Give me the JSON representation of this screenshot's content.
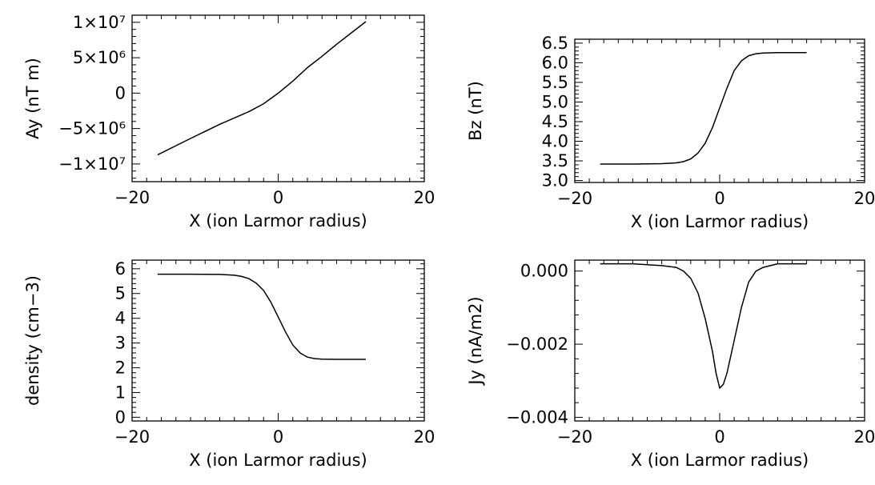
{
  "chart_data": [
    {
      "type": "line",
      "xlabel": "X (ion Larmor radius)",
      "ylabel": "Ay (nT m)",
      "xlim": [
        -20,
        20
      ],
      "ylim": [
        -12500000,
        11000000
      ],
      "xticks": [
        -20,
        0,
        20
      ],
      "xticklabels": [
        "−20",
        "0",
        "20"
      ],
      "yticks": [
        -10000000,
        -5000000,
        0,
        5000000,
        10000000
      ],
      "yticklabels": [
        "−1×10⁷",
        "−5×10⁶",
        "0",
        "5×10⁶",
        "1×10⁷"
      ],
      "series": [
        {
          "x": [
            -16.5,
            -12,
            -8,
            -4,
            -2,
            0,
            2,
            4,
            6,
            8,
            10,
            12
          ],
          "y": [
            -8700000,
            -6400000,
            -4400000,
            -2600000,
            -1500000,
            0,
            1700000,
            3600000,
            5200000,
            6900000,
            8500000,
            10100000
          ]
        }
      ]
    },
    {
      "type": "line",
      "xlabel": "X (ion Larmor radius)",
      "ylabel": "Bz (nT)",
      "xlim": [
        -20,
        20
      ],
      "ylim": [
        2.95,
        6.6
      ],
      "xticks": [
        -20,
        0,
        20
      ],
      "xticklabels": [
        "−20",
        "0",
        "20"
      ],
      "yticks": [
        3.0,
        3.5,
        4.0,
        4.5,
        5.0,
        5.5,
        6.0,
        6.5
      ],
      "yticklabels": [
        "3.0",
        "3.5",
        "4.0",
        "4.5",
        "5.0",
        "5.5",
        "6.0",
        "6.5"
      ],
      "series": [
        {
          "x": [
            -16.5,
            -12,
            -8,
            -6,
            -5,
            -4,
            -3,
            -2,
            -1,
            0,
            1,
            2,
            3,
            4,
            5,
            6,
            8,
            12
          ],
          "y": [
            3.42,
            3.42,
            3.43,
            3.45,
            3.48,
            3.55,
            3.7,
            3.95,
            4.35,
            4.85,
            5.35,
            5.8,
            6.05,
            6.18,
            6.23,
            6.25,
            6.26,
            6.26
          ]
        }
      ]
    },
    {
      "type": "line",
      "xlabel": "X (ion Larmor radius)",
      "ylabel": "density (cm−3)",
      "xlim": [
        -20,
        20
      ],
      "ylim": [
        -0.15,
        6.35
      ],
      "xticks": [
        -20,
        0,
        20
      ],
      "xticklabels": [
        "−20",
        "0",
        "20"
      ],
      "yticks": [
        0,
        1,
        2,
        3,
        4,
        5,
        6
      ],
      "yticklabels": [
        "0",
        "1",
        "2",
        "3",
        "4",
        "5",
        "6"
      ],
      "series": [
        {
          "x": [
            -16.5,
            -12,
            -8,
            -6,
            -5,
            -4,
            -3,
            -2,
            -1,
            0,
            1,
            2,
            3,
            4,
            5,
            6,
            8,
            12
          ],
          "y": [
            5.78,
            5.78,
            5.77,
            5.74,
            5.69,
            5.6,
            5.42,
            5.12,
            4.65,
            4.05,
            3.45,
            2.92,
            2.6,
            2.43,
            2.37,
            2.35,
            2.34,
            2.34
          ]
        }
      ]
    },
    {
      "type": "line",
      "xlabel": "X (ion Larmor radius)",
      "ylabel": "Jy (nA/m2)",
      "xlim": [
        -20,
        20
      ],
      "ylim": [
        -0.0041,
        0.0003
      ],
      "xticks": [
        -20,
        0,
        20
      ],
      "xticklabels": [
        "−20",
        "0",
        "20"
      ],
      "yticks": [
        -0.004,
        -0.002,
        0.0
      ],
      "yticklabels": [
        "−0.004",
        "−0.002",
        "0.000"
      ],
      "series": [
        {
          "x": [
            -16.5,
            -12,
            -8,
            -6,
            -5,
            -4,
            -3,
            -2,
            -1,
            -0.5,
            0,
            0.5,
            1,
            2,
            3,
            4,
            5,
            6,
            8,
            12
          ],
          "y": [
            0.0002,
            0.0002,
            0.00015,
            0.0001,
            0.0,
            -0.0002,
            -0.0006,
            -0.0013,
            -0.0022,
            -0.0028,
            -0.0032,
            -0.0031,
            -0.0028,
            -0.0019,
            -0.001,
            -0.0003,
            0.0,
            0.0001,
            0.0002,
            0.0002
          ]
        }
      ]
    }
  ]
}
